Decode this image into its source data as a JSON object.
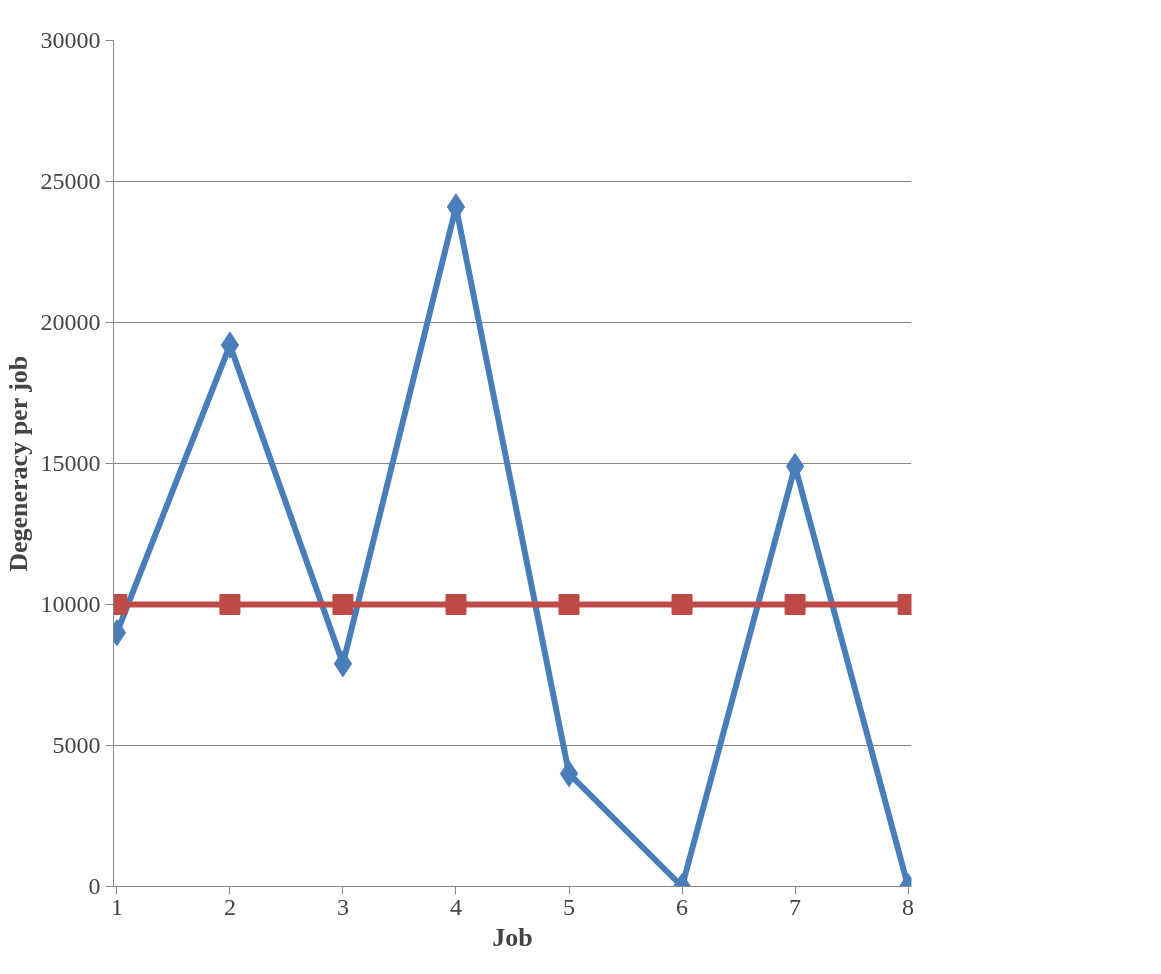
{
  "chart_data": {
    "type": "line",
    "xlabel": "Job",
    "ylabel": "Degeneracy per job",
    "categories": [
      "1",
      "2",
      "3",
      "4",
      "5",
      "6",
      "7",
      "8"
    ],
    "series": [
      {
        "color": "#4a7ebb",
        "marker": "diamond",
        "values": [
          9000,
          19200,
          7900,
          24100,
          4000,
          0,
          14900,
          0
        ]
      },
      {
        "color": "#be4b48",
        "marker": "square",
        "values": [
          10000,
          10000,
          10000,
          10000,
          10000,
          10000,
          10000,
          10000
        ]
      }
    ],
    "ylim": [
      0,
      30000
    ],
    "yticks": [
      0,
      5000,
      10000,
      15000,
      20000,
      25000,
      30000
    ],
    "grid": "y"
  }
}
